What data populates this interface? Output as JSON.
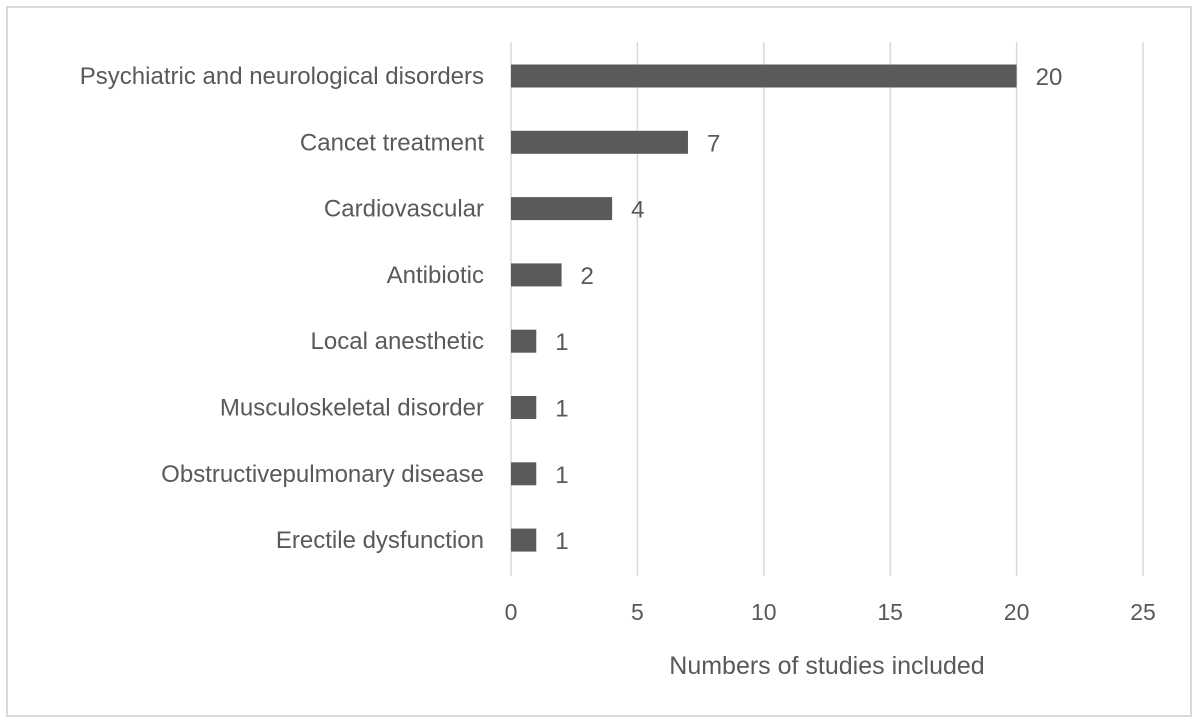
{
  "chart_data": {
    "type": "bar",
    "orientation": "horizontal",
    "categories": [
      "Psychiatric and neurological disorders",
      "Cancet treatment",
      "Cardiovascular",
      "Antibiotic",
      "Local anesthetic",
      "Musculoskeletal disorder",
      "Obstructivepulmonary disease",
      "Erectile dysfunction"
    ],
    "values": [
      20,
      7,
      4,
      2,
      1,
      1,
      1,
      1
    ],
    "data_labels": [
      "20",
      "7",
      "4",
      "2",
      "1",
      "1",
      "1",
      "1"
    ],
    "title": "",
    "xlabel": "Numbers of studies included",
    "ylabel": "",
    "xlim": [
      0,
      25
    ],
    "xticks": [
      0,
      5,
      10,
      15,
      20,
      25
    ],
    "xtick_labels": [
      "0",
      "5",
      "10",
      "15",
      "20",
      "25"
    ],
    "grid": "vertical",
    "legend": "none",
    "colors": {
      "bar": "#5a5a5a",
      "grid": "#d9d9d9",
      "text": "#595959",
      "border": "#d9d9d9"
    }
  }
}
